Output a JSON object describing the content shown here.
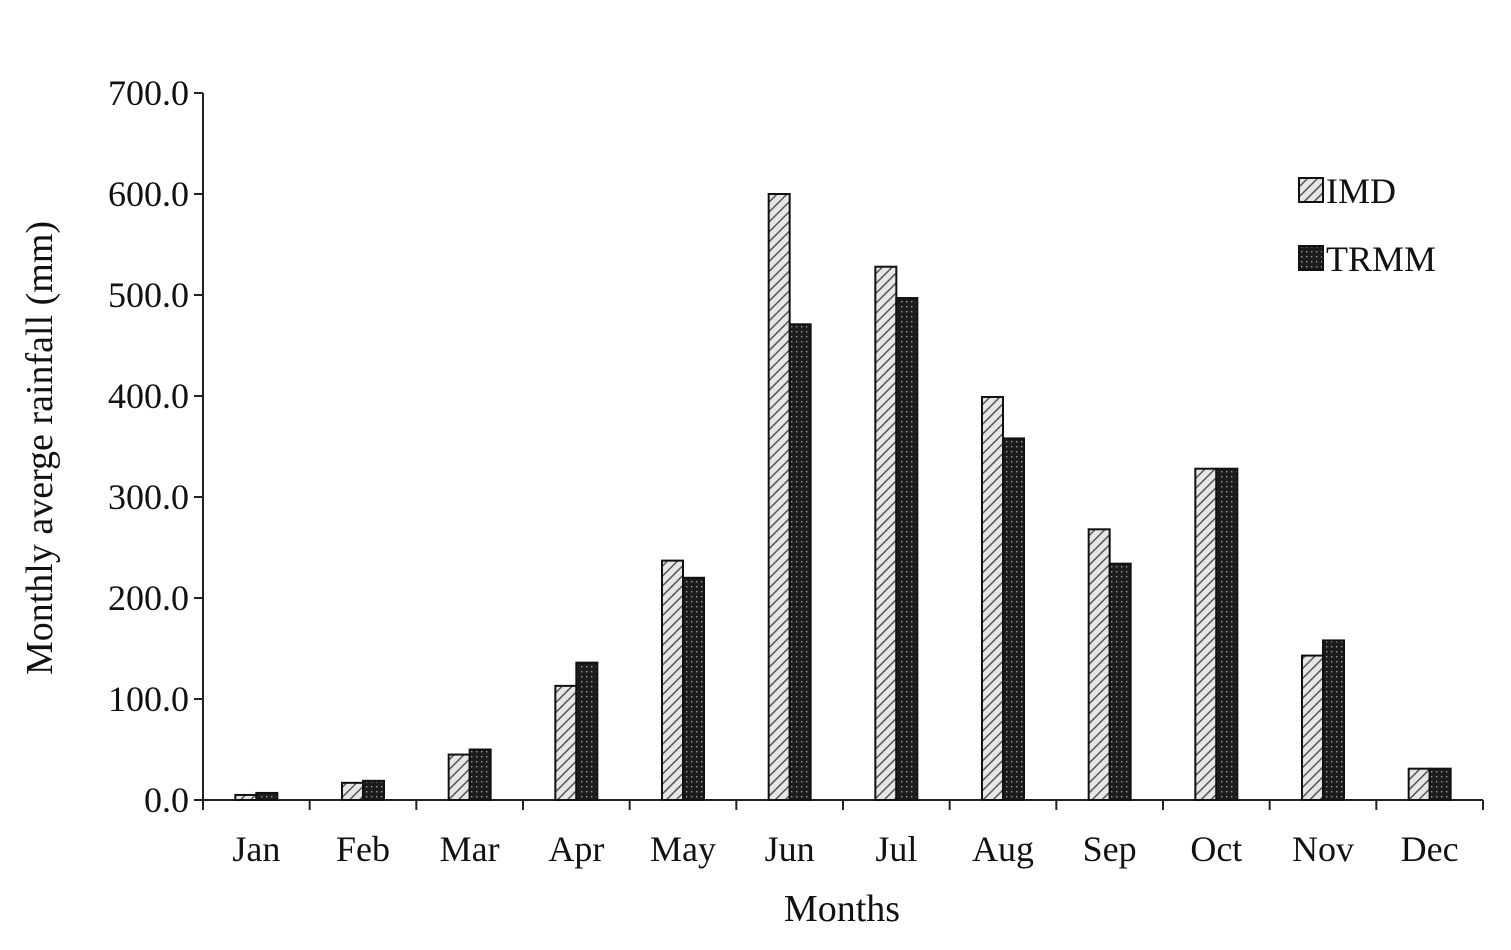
{
  "chart_data": {
    "type": "bar",
    "categories": [
      "Jan",
      "Feb",
      "Mar",
      "Apr",
      "May",
      "Jun",
      "Jul",
      "Aug",
      "Sep",
      "Oct",
      "Nov",
      "Dec"
    ],
    "series": [
      {
        "name": "IMD",
        "values": [
          5,
          17,
          45,
          113,
          237,
          600,
          528,
          399,
          268,
          328,
          143,
          31
        ],
        "pattern": "diagonal-hatch",
        "color": "#d9d9d9"
      },
      {
        "name": "TRMM",
        "values": [
          7,
          19,
          50,
          136,
          220,
          471,
          497,
          358,
          234,
          328,
          158,
          31
        ],
        "pattern": "dark-crosshatch",
        "color": "#1a1a1a"
      }
    ],
    "xlabel": "Months",
    "ylabel": "Monthly averge rainfall (mm)",
    "ylim": [
      0,
      700
    ],
    "yticks": [
      0,
      100,
      200,
      300,
      400,
      500,
      600,
      700
    ],
    "ytick_labels": [
      "0.0",
      "100.0",
      "200.0",
      "300.0",
      "400.0",
      "500.0",
      "600.0",
      "700.0"
    ],
    "grid": false,
    "legend_position": "top-right"
  }
}
